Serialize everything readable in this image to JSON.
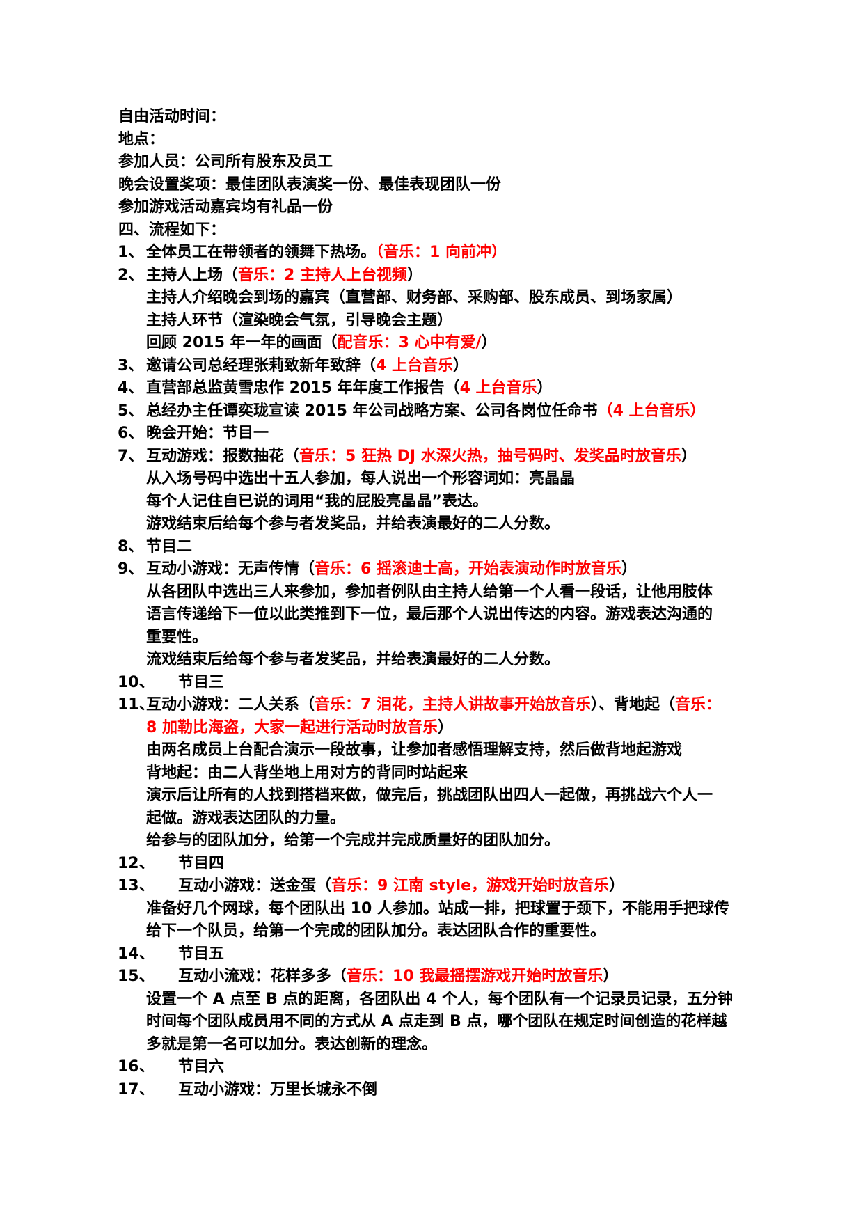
{
  "page": {
    "background": "#ffffff",
    "text_color": "#000000",
    "accent_red": "#ff0000"
  },
  "document": {
    "lines": [
      {
        "type": "p",
        "segments": [
          {
            "t": "自由活动时间：",
            "c": "b"
          }
        ]
      },
      {
        "type": "p",
        "segments": [
          {
            "t": "地点：",
            "c": "b"
          }
        ]
      },
      {
        "type": "p",
        "segments": [
          {
            "t": "参加人员：公司所有股东及员工",
            "c": "b"
          }
        ]
      },
      {
        "type": "p",
        "segments": [
          {
            "t": "晚会设置奖项：最佳团队表演奖一份、最佳表现团队一份",
            "c": "b"
          }
        ]
      },
      {
        "type": "p",
        "segments": [
          {
            "t": "参加游戏活动嘉宾均有礼品一份",
            "c": "b"
          }
        ]
      },
      {
        "type": "p",
        "segments": [
          {
            "t": "四、流程如下：",
            "c": "b"
          }
        ]
      },
      {
        "type": "item",
        "num": "1、",
        "segments": [
          {
            "t": "全体员工在带领者的领舞下热场。",
            "c": "b"
          },
          {
            "t": "（音乐：1 向前冲）",
            "c": "r"
          }
        ]
      },
      {
        "type": "item",
        "num": "2、",
        "segments": [
          {
            "t": "主持人上场（",
            "c": "b"
          },
          {
            "t": "音乐：2 主持人上台视频",
            "c": "r"
          },
          {
            "t": "）",
            "c": "b"
          }
        ]
      },
      {
        "type": "cont",
        "segments": [
          {
            "t": "主持人介绍晚会到场的嘉宾（直营部、财务部、采购部、股东成员、到场家属）",
            "c": "b"
          }
        ]
      },
      {
        "type": "cont",
        "segments": [
          {
            "t": "主持人环节（渲染晚会气氛，引导晚会主题）",
            "c": "b"
          }
        ]
      },
      {
        "type": "cont",
        "segments": [
          {
            "t": "回顾 2015 年一年的画面（",
            "c": "b"
          },
          {
            "t": "配音乐：3 心中有爱/",
            "c": "r"
          },
          {
            "t": "）",
            "c": "b"
          }
        ]
      },
      {
        "type": "item",
        "num": "3、",
        "segments": [
          {
            "t": "邀请公司总经理张莉致新年致辞（",
            "c": "b"
          },
          {
            "t": "4 上台音乐",
            "c": "r"
          },
          {
            "t": "）",
            "c": "b"
          }
        ]
      },
      {
        "type": "item",
        "num": "4、",
        "segments": [
          {
            "t": "直营部总监黄雪忠作 2015 年年度工作报告（",
            "c": "b"
          },
          {
            "t": "4 上台音乐",
            "c": "r"
          },
          {
            "t": "）",
            "c": "b"
          }
        ]
      },
      {
        "type": "item",
        "num": "5、",
        "segments": [
          {
            "t": "总经办主任谭奕珑宣读 2015 年公司战略方案、公司各岗位任命书",
            "c": "b"
          },
          {
            "t": "（4 上台音乐）",
            "c": "r"
          }
        ]
      },
      {
        "type": "item",
        "num": "6、",
        "segments": [
          {
            "t": "晚会开始：节目一",
            "c": "b"
          }
        ]
      },
      {
        "type": "item",
        "num": "7、",
        "segments": [
          {
            "t": "互动游戏：报数抽花（",
            "c": "b"
          },
          {
            "t": "音乐：5 狂热 DJ 水深火热，抽号码时、发奖品时放音乐",
            "c": "r"
          },
          {
            "t": "）",
            "c": "b"
          }
        ]
      },
      {
        "type": "cont",
        "segments": [
          {
            "t": "从入场号码中选出十五人参加，每人说出一个形容词如：亮晶晶",
            "c": "b"
          }
        ]
      },
      {
        "type": "cont",
        "segments": [
          {
            "t": "每个人记住自已说的词用“我的屁股亮晶晶”表达。",
            "c": "b"
          }
        ]
      },
      {
        "type": "cont",
        "segments": [
          {
            "t": "游戏结束后给每个参与者发奖品，并给表演最好的二人分数。",
            "c": "b"
          }
        ]
      },
      {
        "type": "item",
        "num": "8、",
        "segments": [
          {
            "t": "节目二",
            "c": "b"
          }
        ]
      },
      {
        "type": "item",
        "num": "9、",
        "segments": [
          {
            "t": "互动小游戏：无声传情（",
            "c": "b"
          },
          {
            "t": "音乐：6 摇滚迪士高，开始表演动作时放音乐",
            "c": "r"
          },
          {
            "t": "）",
            "c": "b"
          }
        ]
      },
      {
        "type": "cont",
        "segments": [
          {
            "t": "从各团队中选出三人来参加，参加者例队由主持人给第一个人看一段话，让他用肢体",
            "c": "b"
          }
        ]
      },
      {
        "type": "cont",
        "segments": [
          {
            "t": "语言传递给下一位以此类推到下一位，最后那个人说出传达的内容。游戏表达沟通的",
            "c": "b"
          }
        ]
      },
      {
        "type": "cont",
        "segments": [
          {
            "t": "重要性。",
            "c": "b"
          }
        ]
      },
      {
        "type": "cont",
        "segments": [
          {
            "t": "流戏结束后给每个参与者发奖品，并给表演最好的二人分数。",
            "c": "b"
          }
        ]
      },
      {
        "type": "item-tab",
        "num": "10、",
        "segments": [
          {
            "t": "节目三",
            "c": "b"
          }
        ]
      },
      {
        "type": "item",
        "num": "11、",
        "segments": [
          {
            "t": "互动小游戏：二人关系（",
            "c": "b"
          },
          {
            "t": "音乐：7 泪花，主持人讲故事开始放音乐",
            "c": "r"
          },
          {
            "t": "）、背地起（",
            "c": "b"
          },
          {
            "t": "音乐：",
            "c": "r"
          }
        ]
      },
      {
        "type": "cont",
        "segments": [
          {
            "t": "8 加勒比海盗，大家一起进行活动时放音乐",
            "c": "r"
          },
          {
            "t": "）",
            "c": "b"
          }
        ]
      },
      {
        "type": "cont",
        "segments": [
          {
            "t": "由两名成员上台配合演示一段故事，让参加者感悟理解支持，然后做背地起游戏",
            "c": "b"
          }
        ]
      },
      {
        "type": "cont",
        "segments": [
          {
            "t": "背地起：由二人背坐地上用对方的背同时站起来",
            "c": "b"
          }
        ]
      },
      {
        "type": "cont",
        "segments": [
          {
            "t": "演示后让所有的人找到搭档来做，做完后，挑战团队出四人一起做，再挑战六个人一",
            "c": "b"
          }
        ]
      },
      {
        "type": "cont",
        "segments": [
          {
            "t": "起做。游戏表达团队的力量。",
            "c": "b"
          }
        ]
      },
      {
        "type": "cont",
        "segments": [
          {
            "t": "给参与的团队加分，给第一个完成并完成质量好的团队加分。",
            "c": "b"
          }
        ]
      },
      {
        "type": "item-tab",
        "num": "12、",
        "segments": [
          {
            "t": "节目四",
            "c": "b"
          }
        ]
      },
      {
        "type": "item-tab",
        "num": "13、",
        "segments": [
          {
            "t": "互动小游戏：送金蛋（",
            "c": "b"
          },
          {
            "t": "音乐：9 江南 style，游戏开始时放音乐",
            "c": "r"
          },
          {
            "t": "）",
            "c": "b"
          }
        ]
      },
      {
        "type": "cont",
        "segments": [
          {
            "t": "准备好几个网球，每个团队出 10 人参加。站成一排，把球置于颈下，不能用手把球传",
            "c": "b"
          }
        ]
      },
      {
        "type": "cont",
        "segments": [
          {
            "t": "给下一个队员，给第一个完成的团队加分。表达团队合作的重要性。",
            "c": "b"
          }
        ]
      },
      {
        "type": "item-tab",
        "num": "14、",
        "segments": [
          {
            "t": "节目五",
            "c": "b"
          }
        ]
      },
      {
        "type": "item-tab",
        "num": "15、",
        "segments": [
          {
            "t": "互动小流戏：花样多多（",
            "c": "b"
          },
          {
            "t": "音乐：10 我最摇摆游戏开始时放音乐",
            "c": "r"
          },
          {
            "t": "）",
            "c": "b"
          }
        ]
      },
      {
        "type": "cont",
        "segments": [
          {
            "t": "设置一个 A 点至 B 点的距离，各团队出 4 个人，每个团队有一个记录员记录，五分钟",
            "c": "b"
          }
        ]
      },
      {
        "type": "cont",
        "segments": [
          {
            "t": "时间每个团队成员用不同的方式从 A 点走到 B 点，哪个团队在规定时间创造的花样越",
            "c": "b"
          }
        ]
      },
      {
        "type": "cont",
        "segments": [
          {
            "t": "多就是第一名可以加分。表达创新的理念。",
            "c": "b"
          }
        ]
      },
      {
        "type": "item-tab",
        "num": "16、",
        "segments": [
          {
            "t": "节目六",
            "c": "b"
          }
        ]
      },
      {
        "type": "item-tab",
        "num": "17、",
        "segments": [
          {
            "t": "互动小游戏：万里长城永不倒",
            "c": "b"
          }
        ]
      }
    ]
  }
}
